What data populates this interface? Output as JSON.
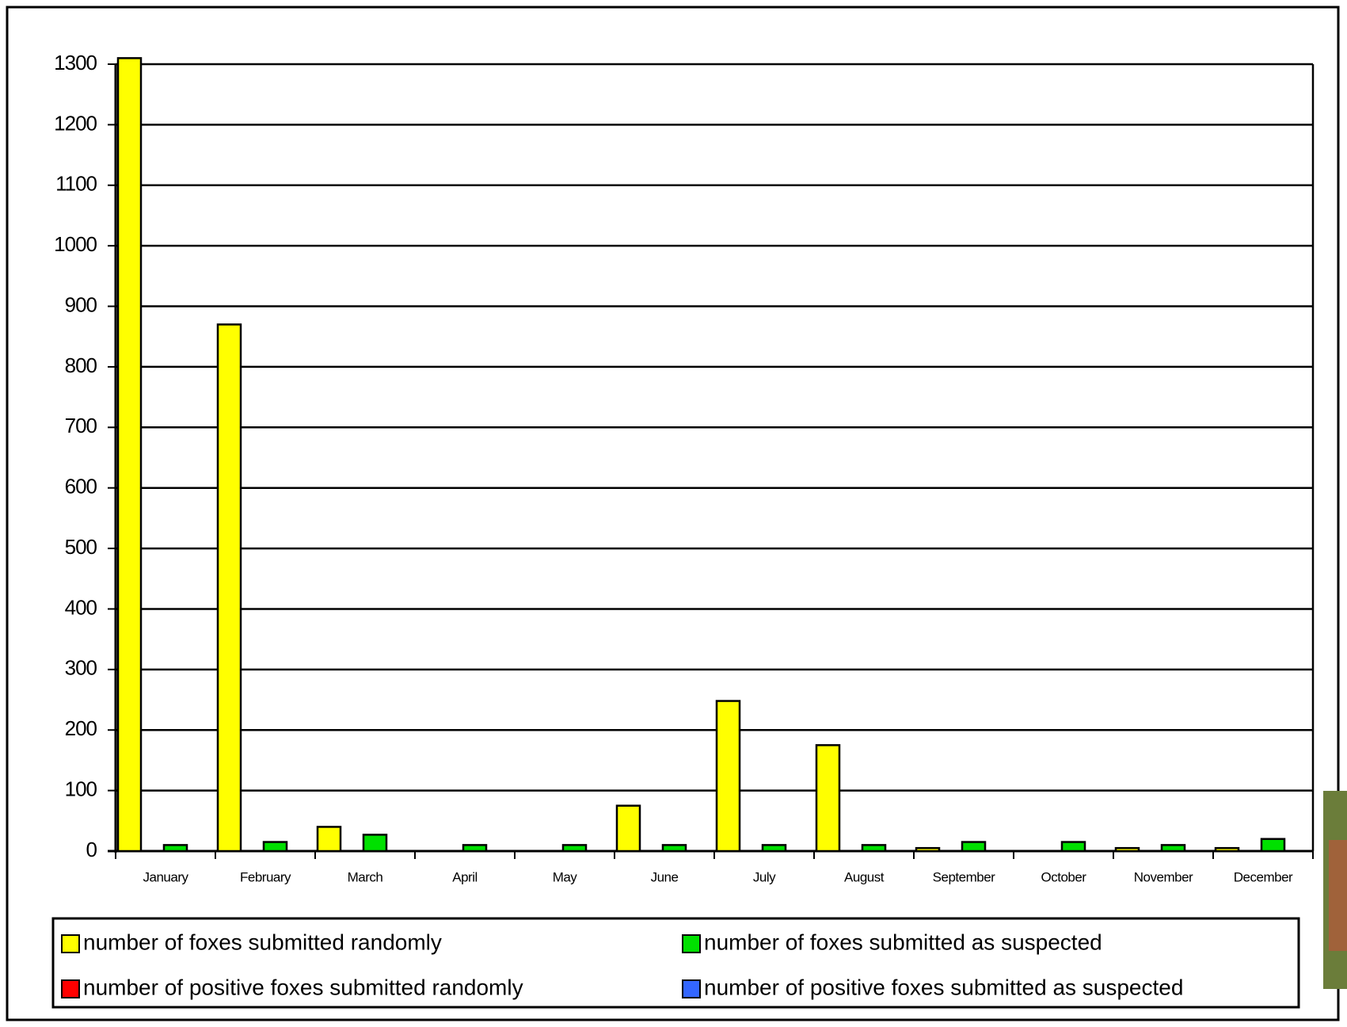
{
  "chart_data": {
    "type": "bar",
    "categories": [
      "January",
      "February",
      "March",
      "April",
      "May",
      "June",
      "July",
      "August",
      "September",
      "October",
      "November",
      "December"
    ],
    "series": [
      {
        "name": "number of foxes submitted randomly",
        "color": "#ffff00",
        "values": [
          1310,
          870,
          40,
          0,
          0,
          75,
          248,
          175,
          5,
          0,
          5,
          5
        ]
      },
      {
        "name": "number of positive foxes submitted randomly",
        "color": "#ff0000",
        "values": [
          0,
          0,
          0,
          0,
          0,
          0,
          0,
          0,
          0,
          0,
          0,
          0
        ]
      },
      {
        "name": "number of foxes submitted as suspected",
        "color": "#00e000",
        "values": [
          10,
          15,
          27,
          10,
          10,
          10,
          10,
          10,
          15,
          15,
          10,
          20
        ]
      },
      {
        "name": "number of positive foxes submitted as suspected",
        "color": "#3366ff",
        "values": [
          0,
          0,
          0,
          0,
          0,
          0,
          0,
          0,
          0,
          0,
          0,
          0
        ]
      }
    ],
    "ylim": [
      0,
      1300
    ],
    "yticks": [
      0,
      100,
      200,
      300,
      400,
      500,
      600,
      700,
      800,
      900,
      1000,
      1100,
      1200,
      1300
    ],
    "grid": true
  }
}
